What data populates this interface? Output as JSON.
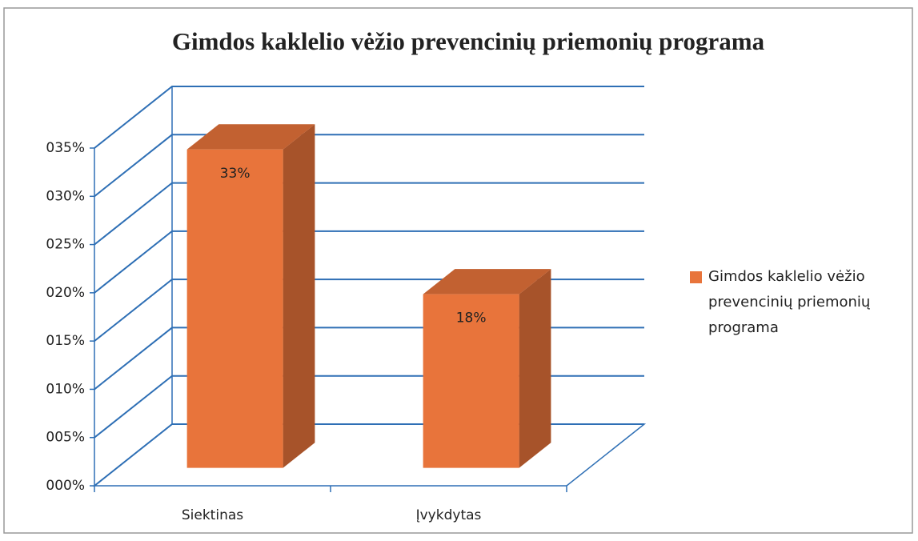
{
  "chart_data": {
    "type": "bar3d",
    "title": "Gimdos kaklelio vėžio prevencinių priemonių programa",
    "categories": [
      "Siektinas",
      "Įvykdytas"
    ],
    "series": [
      {
        "name": "Gimdos kaklelio vėžio prevencinių priemonių programa",
        "color": "#e8743b",
        "values": [
          33,
          18
        ],
        "value_labels": [
          "33%",
          "18%"
        ]
      }
    ],
    "ylim": [
      0,
      35
    ],
    "yticks": [
      {
        "value": 0,
        "label": "000%"
      },
      {
        "value": 5,
        "label": "005%"
      },
      {
        "value": 10,
        "label": "010%"
      },
      {
        "value": 15,
        "label": "015%"
      },
      {
        "value": 20,
        "label": "020%"
      },
      {
        "value": 25,
        "label": "025%"
      },
      {
        "value": 30,
        "label": "030%"
      },
      {
        "value": 35,
        "label": "035%"
      }
    ],
    "grid": true,
    "grid_color": "#2e6fb5",
    "legend": "right"
  }
}
